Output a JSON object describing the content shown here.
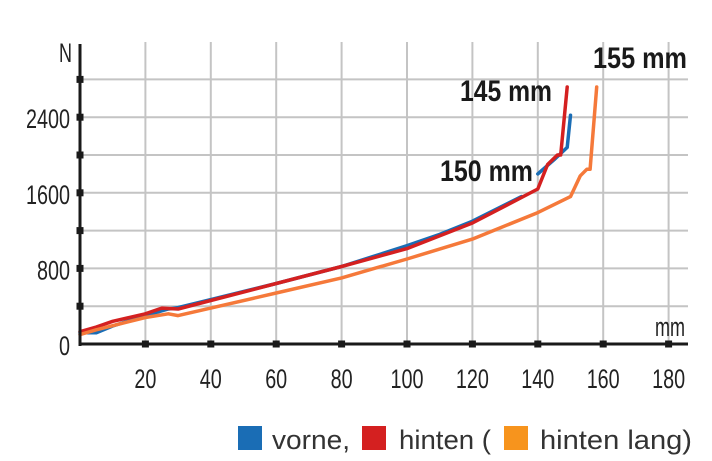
{
  "chart_data": {
    "type": "line",
    "title": "",
    "xlabel": "mm",
    "ylabel": "N",
    "xlim": [
      0,
      180
    ],
    "ylim": [
      0,
      2800
    ],
    "x_ticks": [
      20,
      40,
      60,
      80,
      100,
      120,
      140,
      160,
      180
    ],
    "y_ticks": [
      0,
      800,
      1600,
      2400
    ],
    "y_gridlines": [
      400,
      800,
      1200,
      1600,
      2000,
      2400,
      2800
    ],
    "grid": true,
    "legend_placement": "bottom-right",
    "annotations": [
      "145 mm",
      "150 mm",
      "155 mm"
    ],
    "series": [
      {
        "name": "vorne,",
        "color": "#1a6db5",
        "points": [
          [
            0,
            120
          ],
          [
            5,
            120
          ],
          [
            10,
            190
          ],
          [
            20,
            300
          ],
          [
            27,
            370
          ],
          [
            30,
            385
          ],
          [
            40,
            470
          ],
          [
            60,
            640
          ],
          [
            80,
            820
          ],
          [
            100,
            1040
          ],
          [
            110,
            1160
          ],
          [
            120,
            1300
          ],
          [
            135,
            1560
          ]
        ],
        "points_2": [
          [
            140,
            1800
          ],
          [
            145,
            1950
          ],
          [
            149,
            2080
          ],
          [
            150,
            2420
          ]
        ]
      },
      {
        "name": "hinten (",
        "color": "#d42020",
        "points": [
          [
            0,
            130
          ],
          [
            5,
            180
          ],
          [
            10,
            240
          ],
          [
            20,
            320
          ],
          [
            25,
            380
          ],
          [
            30,
            370
          ],
          [
            40,
            460
          ],
          [
            60,
            640
          ],
          [
            80,
            820
          ],
          [
            100,
            1010
          ],
          [
            120,
            1280
          ],
          [
            140,
            1640
          ],
          [
            143,
            1900
          ],
          [
            146,
            2000
          ],
          [
            147,
            2000
          ],
          [
            149,
            2720
          ]
        ]
      },
      {
        "name": "hinten lang)",
        "color": "#f5793a",
        "legend_color": "#f7941d",
        "points": [
          [
            0,
            100
          ],
          [
            5,
            150
          ],
          [
            20,
            280
          ],
          [
            27,
            320
          ],
          [
            30,
            300
          ],
          [
            40,
            380
          ],
          [
            60,
            540
          ],
          [
            80,
            700
          ],
          [
            100,
            900
          ],
          [
            120,
            1110
          ],
          [
            140,
            1390
          ],
          [
            150,
            1560
          ],
          [
            153,
            1780
          ],
          [
            155,
            1850
          ],
          [
            156,
            1850
          ],
          [
            158,
            2720
          ]
        ]
      }
    ]
  }
}
